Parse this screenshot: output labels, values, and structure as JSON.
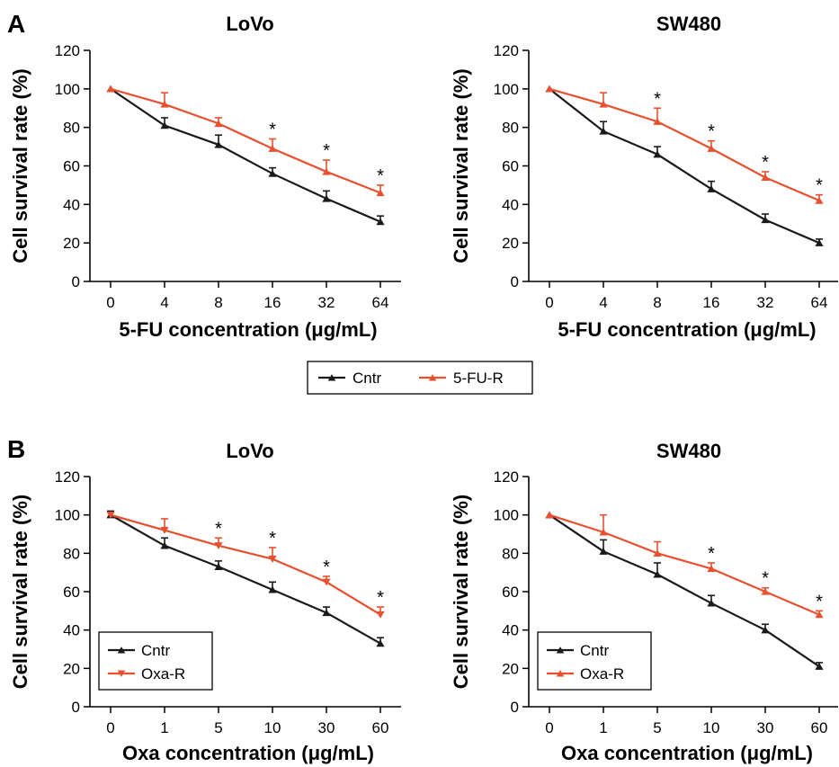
{
  "panels": [
    {
      "letter": "A",
      "letter_show": true
    },
    {
      "letter": "B",
      "letter_show": true
    }
  ],
  "colors": {
    "cntr": "#1a1a1a",
    "resistant": "#e8502f",
    "axis": "#000000"
  },
  "shared_legend": {
    "entries": [
      "Cntr",
      "5-FU-R"
    ]
  },
  "chart_data": [
    {
      "type": "line",
      "title": "LoVo",
      "xlabel": "5-FU concentration (μg/mL)",
      "ylabel": "Cell survival rate (%)",
      "categories": [
        "0",
        "4",
        "8",
        "16",
        "32",
        "64"
      ],
      "ylim": [
        0,
        120
      ],
      "yticks": [
        0,
        20,
        40,
        60,
        80,
        100,
        120
      ],
      "grid": false,
      "legend": "none",
      "significance": [
        "",
        "",
        "",
        "*",
        "*",
        "*"
      ],
      "series": [
        {
          "name": "Cntr",
          "color": "#1a1a1a",
          "marker": "triangle-up",
          "values": [
            100,
            81,
            71,
            56,
            43,
            31
          ],
          "errors": [
            0,
            4,
            5,
            3,
            4,
            3
          ]
        },
        {
          "name": "5-FU-R",
          "color": "#e8502f",
          "marker": "triangle-up",
          "values": [
            100,
            92,
            82,
            69,
            57,
            46
          ],
          "errors": [
            0,
            6,
            3,
            5,
            6,
            4
          ]
        }
      ]
    },
    {
      "type": "line",
      "title": "SW480",
      "xlabel": "5-FU concentration (μg/mL)",
      "ylabel": "Cell survival rate (%)",
      "categories": [
        "0",
        "4",
        "8",
        "16",
        "32",
        "64"
      ],
      "ylim": [
        0,
        120
      ],
      "yticks": [
        0,
        20,
        40,
        60,
        80,
        100,
        120
      ],
      "grid": false,
      "legend": "none",
      "significance": [
        "",
        "",
        "*",
        "*",
        "*",
        "*"
      ],
      "series": [
        {
          "name": "Cntr",
          "color": "#1a1a1a",
          "marker": "triangle-up",
          "values": [
            100,
            78,
            66,
            48,
            32,
            20
          ],
          "errors": [
            0,
            5,
            4,
            4,
            3,
            2
          ]
        },
        {
          "name": "5-FU-R",
          "color": "#e8502f",
          "marker": "triangle-up",
          "values": [
            100,
            92,
            83,
            69,
            54,
            42
          ],
          "errors": [
            0,
            6,
            7,
            4,
            3,
            3
          ]
        }
      ]
    },
    {
      "type": "line",
      "title": "LoVo",
      "xlabel": "Oxa concentration (μg/mL)",
      "ylabel": "Cell survival rate (%)",
      "categories": [
        "0",
        "1",
        "5",
        "10",
        "30",
        "60"
      ],
      "ylim": [
        0,
        120
      ],
      "yticks": [
        0,
        20,
        40,
        60,
        80,
        100,
        120
      ],
      "grid": false,
      "legend": "bottom-left",
      "significance": [
        "",
        "",
        "*",
        "*",
        "*",
        "*"
      ],
      "series": [
        {
          "name": "Cntr",
          "color": "#1a1a1a",
          "marker": "triangle-up",
          "values": [
            100,
            84,
            73,
            61,
            49,
            33
          ],
          "errors": [
            2,
            4,
            3,
            4,
            3,
            3
          ]
        },
        {
          "name": "Oxa-R",
          "color": "#e8502f",
          "marker": "triangle-down",
          "values": [
            100,
            92,
            84,
            77,
            65,
            48
          ],
          "errors": [
            0,
            6,
            4,
            6,
            3,
            4
          ]
        }
      ]
    },
    {
      "type": "line",
      "title": "SW480",
      "xlabel": "Oxa concentration (μg/mL)",
      "ylabel": "Cell survival rate (%)",
      "categories": [
        "0",
        "1",
        "5",
        "10",
        "30",
        "60"
      ],
      "ylim": [
        0,
        120
      ],
      "yticks": [
        0,
        20,
        40,
        60,
        80,
        100,
        120
      ],
      "grid": false,
      "legend": "bottom-left",
      "significance": [
        "",
        "",
        "",
        "*",
        "*",
        "*"
      ],
      "series": [
        {
          "name": "Cntr",
          "color": "#1a1a1a",
          "marker": "triangle-up",
          "values": [
            100,
            81,
            69,
            54,
            40,
            21
          ],
          "errors": [
            0,
            6,
            6,
            4,
            3,
            2
          ]
        },
        {
          "name": "Oxa-R",
          "color": "#e8502f",
          "marker": "triangle-up",
          "values": [
            100,
            91,
            80,
            72,
            60,
            48
          ],
          "errors": [
            0,
            9,
            6,
            3,
            2,
            2
          ]
        }
      ]
    }
  ]
}
